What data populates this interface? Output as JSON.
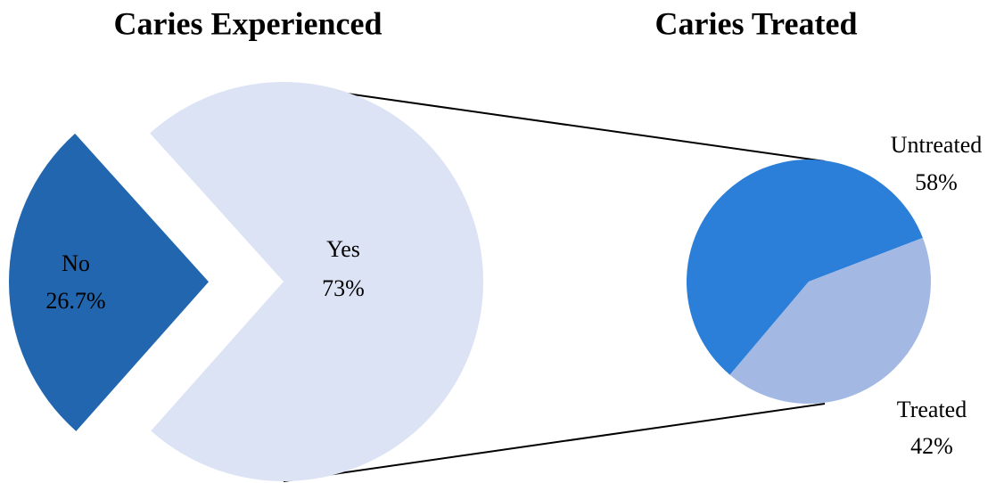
{
  "chart_data": [
    {
      "type": "pie",
      "title": "Caries Experienced",
      "categories": [
        "No",
        "Yes"
      ],
      "values": [
        26.7,
        73
      ],
      "value_labels": [
        "26.7%",
        "73%"
      ],
      "colors": [
        "#2166ae",
        "#dce3f4"
      ]
    },
    {
      "type": "pie",
      "title": "Caries Treated",
      "categories": [
        "Untreated",
        "Treated"
      ],
      "values": [
        58,
        42
      ],
      "value_labels": [
        "58%",
        "42%"
      ],
      "colors": [
        "#2b7fd8",
        "#a3b9e4"
      ]
    }
  ]
}
